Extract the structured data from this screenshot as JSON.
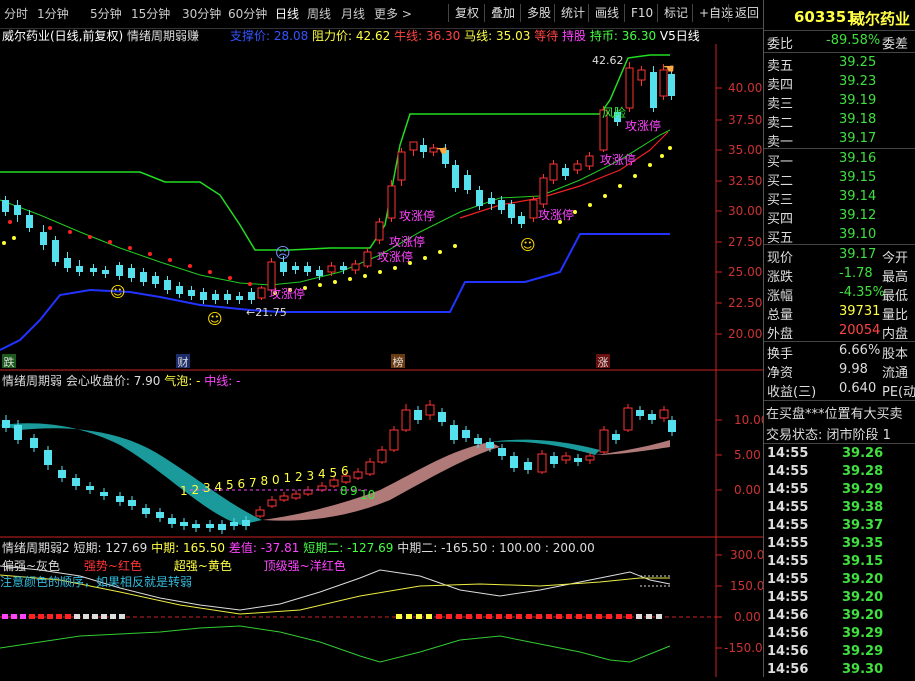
{
  "toolbar": {
    "periods": [
      "分时",
      "1分钟",
      "5分钟",
      "15分钟",
      "30分钟",
      "60分钟",
      "日线",
      "周线",
      "月线",
      "更多 >"
    ],
    "active": "日线",
    "buttons": [
      "复权",
      "叠加",
      "多股",
      "统计",
      "画线",
      "F10",
      "标记",
      "+自选",
      "返回"
    ]
  },
  "main_chart": {
    "stock_title": "威尔药业(日线,前复权)",
    "indicator": "情绪周期弱赚",
    "lines": [
      {
        "label": "支撑价: 28.08",
        "color": "#3355ff"
      },
      {
        "label": "阻力价: 42.62",
        "color": "#ffff44"
      },
      {
        "label": "牛线: 36.30",
        "color": "#ff4444"
      },
      {
        "label": "马线: 35.03",
        "color": "#ffff44"
      },
      {
        "label": "等待",
        "color": "#ff4444"
      },
      {
        "label": "持股",
        "color": "#ff44ff"
      },
      {
        "label": "持币: 36.30",
        "color": "#44ff44"
      },
      {
        "label": "V5日线",
        "color": "#ffffff"
      }
    ],
    "y_ticks": [
      "40.00",
      "37.50",
      "35.00",
      "32.50",
      "30.00",
      "27.50",
      "25.00",
      "22.50",
      "20.00"
    ],
    "annotations": {
      "high": "42.62",
      "low": "←21.75",
      "risk": "风险",
      "attack": [
        "攻涨停",
        "攻涨停",
        "攻涨停",
        "攻涨停",
        "攻涨停",
        "攻涨停",
        "攻涨停"
      ]
    },
    "bottom_markers": [
      "跌",
      "财",
      "榜",
      "涨"
    ]
  },
  "sub1": {
    "title": "情绪周期弱",
    "items": [
      {
        "label": "会心收盘价: 7.90",
        "color": "#dddddd"
      },
      {
        "label": "气泡: -",
        "color": "#ffff44"
      },
      {
        "label": "中线: -",
        "color": "#ff44ff"
      }
    ],
    "y_ticks": [
      "10.00",
      "5.00",
      "0.00"
    ],
    "count_a": [
      "1",
      "2",
      "3",
      "4",
      "5",
      "6",
      "7",
      "8",
      "0",
      "1",
      "2",
      "3",
      "4",
      "5",
      "6"
    ],
    "count_b": [
      "8",
      "9",
      "10"
    ]
  },
  "sub2": {
    "title": "情绪周期弱2",
    "items": [
      {
        "label": "短期: 127.69",
        "color": "#dddddd"
      },
      {
        "label": "中期: 165.50",
        "color": "#ffff44"
      },
      {
        "label": "差值: -37.81",
        "color": "#ff44ff"
      },
      {
        "label": "短期二: -127.69",
        "color": "#44ff44"
      },
      {
        "label": "中期二: -165.50",
        "color": "#dddddd"
      },
      {
        "label": ": 100.00 : 200.00",
        "color": "#dddddd"
      }
    ],
    "legend": [
      {
        "text": "偏强~灰色",
        "color": "#dddddd"
      },
      {
        "text": "强势~红色",
        "color": "#ff3333"
      },
      {
        "text": "超强~黄色",
        "color": "#ffff44"
      },
      {
        "text": "顶级强~洋红色",
        "color": "#ff44ff"
      }
    ],
    "note": "注意颜色的顺序，如果相反就是转弱",
    "y_ticks": [
      "300.0",
      "150.0",
      "0.00",
      "-150.0"
    ]
  },
  "quote": {
    "code": "603351",
    "name": "威尔药业",
    "weibi_label": "委比",
    "weibi_value": "-89.58%",
    "weicha_label": "委差",
    "asks": [
      {
        "label": "卖五",
        "price": "39.25"
      },
      {
        "label": "卖四",
        "price": "39.23"
      },
      {
        "label": "卖三",
        "price": "39.19"
      },
      {
        "label": "卖二",
        "price": "39.18"
      },
      {
        "label": "卖一",
        "price": "39.17"
      }
    ],
    "bids": [
      {
        "label": "买一",
        "price": "39.16"
      },
      {
        "label": "买二",
        "price": "39.15"
      },
      {
        "label": "买三",
        "price": "39.14"
      },
      {
        "label": "买四",
        "price": "39.12"
      },
      {
        "label": "买五",
        "price": "39.10"
      }
    ],
    "stats": [
      {
        "label": "现价",
        "value": "39.17",
        "right": "今开",
        "color": "#3fe03f"
      },
      {
        "label": "涨跌",
        "value": "-1.78",
        "right": "最高",
        "color": "#3fe03f"
      },
      {
        "label": "涨幅",
        "value": "-4.35%",
        "right": "最低",
        "color": "#3fe03f"
      },
      {
        "label": "总量",
        "value": "39731",
        "right": "量比",
        "color": "#ffff44"
      },
      {
        "label": "外盘",
        "value": "20054",
        "right": "内盘",
        "color": "#ff4444"
      }
    ],
    "stats2": [
      {
        "label": "换手",
        "value": "6.66%",
        "right": "股本",
        "color": "#dddddd"
      },
      {
        "label": "净资",
        "value": "9.98",
        "right": "流通",
        "color": "#dddddd"
      },
      {
        "label": "收益(三)",
        "value": "0.640",
        "right": "PE(动",
        "color": "#dddddd"
      }
    ],
    "notice1": "在买盘***位置有大买卖",
    "notice2": "交易状态: 闭市阶段 1",
    "ticks": [
      {
        "time": "14:55",
        "price": "39.26"
      },
      {
        "time": "14:55",
        "price": "39.28"
      },
      {
        "time": "14:55",
        "price": "39.29"
      },
      {
        "time": "14:55",
        "price": "39.38"
      },
      {
        "time": "14:55",
        "price": "39.37"
      },
      {
        "time": "14:55",
        "price": "39.35"
      },
      {
        "time": "14:55",
        "price": "39.15"
      },
      {
        "time": "14:55",
        "price": "39.20"
      },
      {
        "time": "14:55",
        "price": "39.20"
      },
      {
        "time": "14:56",
        "price": "39.20"
      },
      {
        "time": "14:56",
        "price": "39.29"
      },
      {
        "time": "14:56",
        "price": "39.29"
      },
      {
        "time": "14:56",
        "price": "39.30"
      }
    ]
  },
  "colors": {
    "up": "#ff3333",
    "down": "#55e0ee",
    "ask_bid": "#3fe03f"
  }
}
